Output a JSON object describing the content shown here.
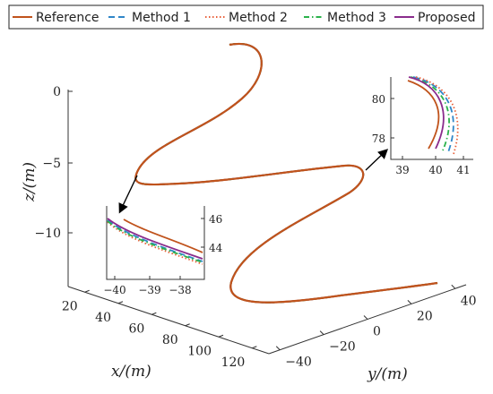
{
  "chart_data": {
    "type": "line",
    "projection": "3d",
    "legend": {
      "placement": "top",
      "entries": [
        {
          "label": "Reference",
          "color": "#c0531c",
          "style": "solid"
        },
        {
          "label": "Method 1",
          "color": "#2f86c8",
          "style": "dashed"
        },
        {
          "label": "Method 2",
          "color": "#e8603a",
          "style": "dotted"
        },
        {
          "label": "Method 3",
          "color": "#2bb24b",
          "style": "dashdot"
        },
        {
          "label": "Proposed",
          "color": "#8a2c8c",
          "style": "solid"
        }
      ]
    },
    "axes": {
      "x": {
        "label": "x/(m)",
        "ticks": [
          "20",
          "40",
          "60",
          "80",
          "100",
          "120"
        ],
        "range": [
          10,
          130
        ]
      },
      "y": {
        "label": "y/(m)",
        "ticks": [
          "−40",
          "−20",
          "0",
          "20",
          "40"
        ],
        "range": [
          -45,
          45
        ]
      },
      "z": {
        "label": "z/(m)",
        "ticks": [
          "0",
          "−5",
          "−10"
        ],
        "range": [
          -13,
          2
        ]
      }
    },
    "series_description": "helical trajectory; all methods overlap the reference",
    "insets": [
      {
        "position": "lower-left",
        "x_ticks": [
          "−40",
          "−39",
          "−38"
        ],
        "y_ticks": [
          "46",
          "44"
        ]
      },
      {
        "position": "upper-right",
        "x_ticks": [
          "39",
          "40",
          "41"
        ],
        "y_ticks": [
          "80",
          "78"
        ]
      }
    ]
  }
}
